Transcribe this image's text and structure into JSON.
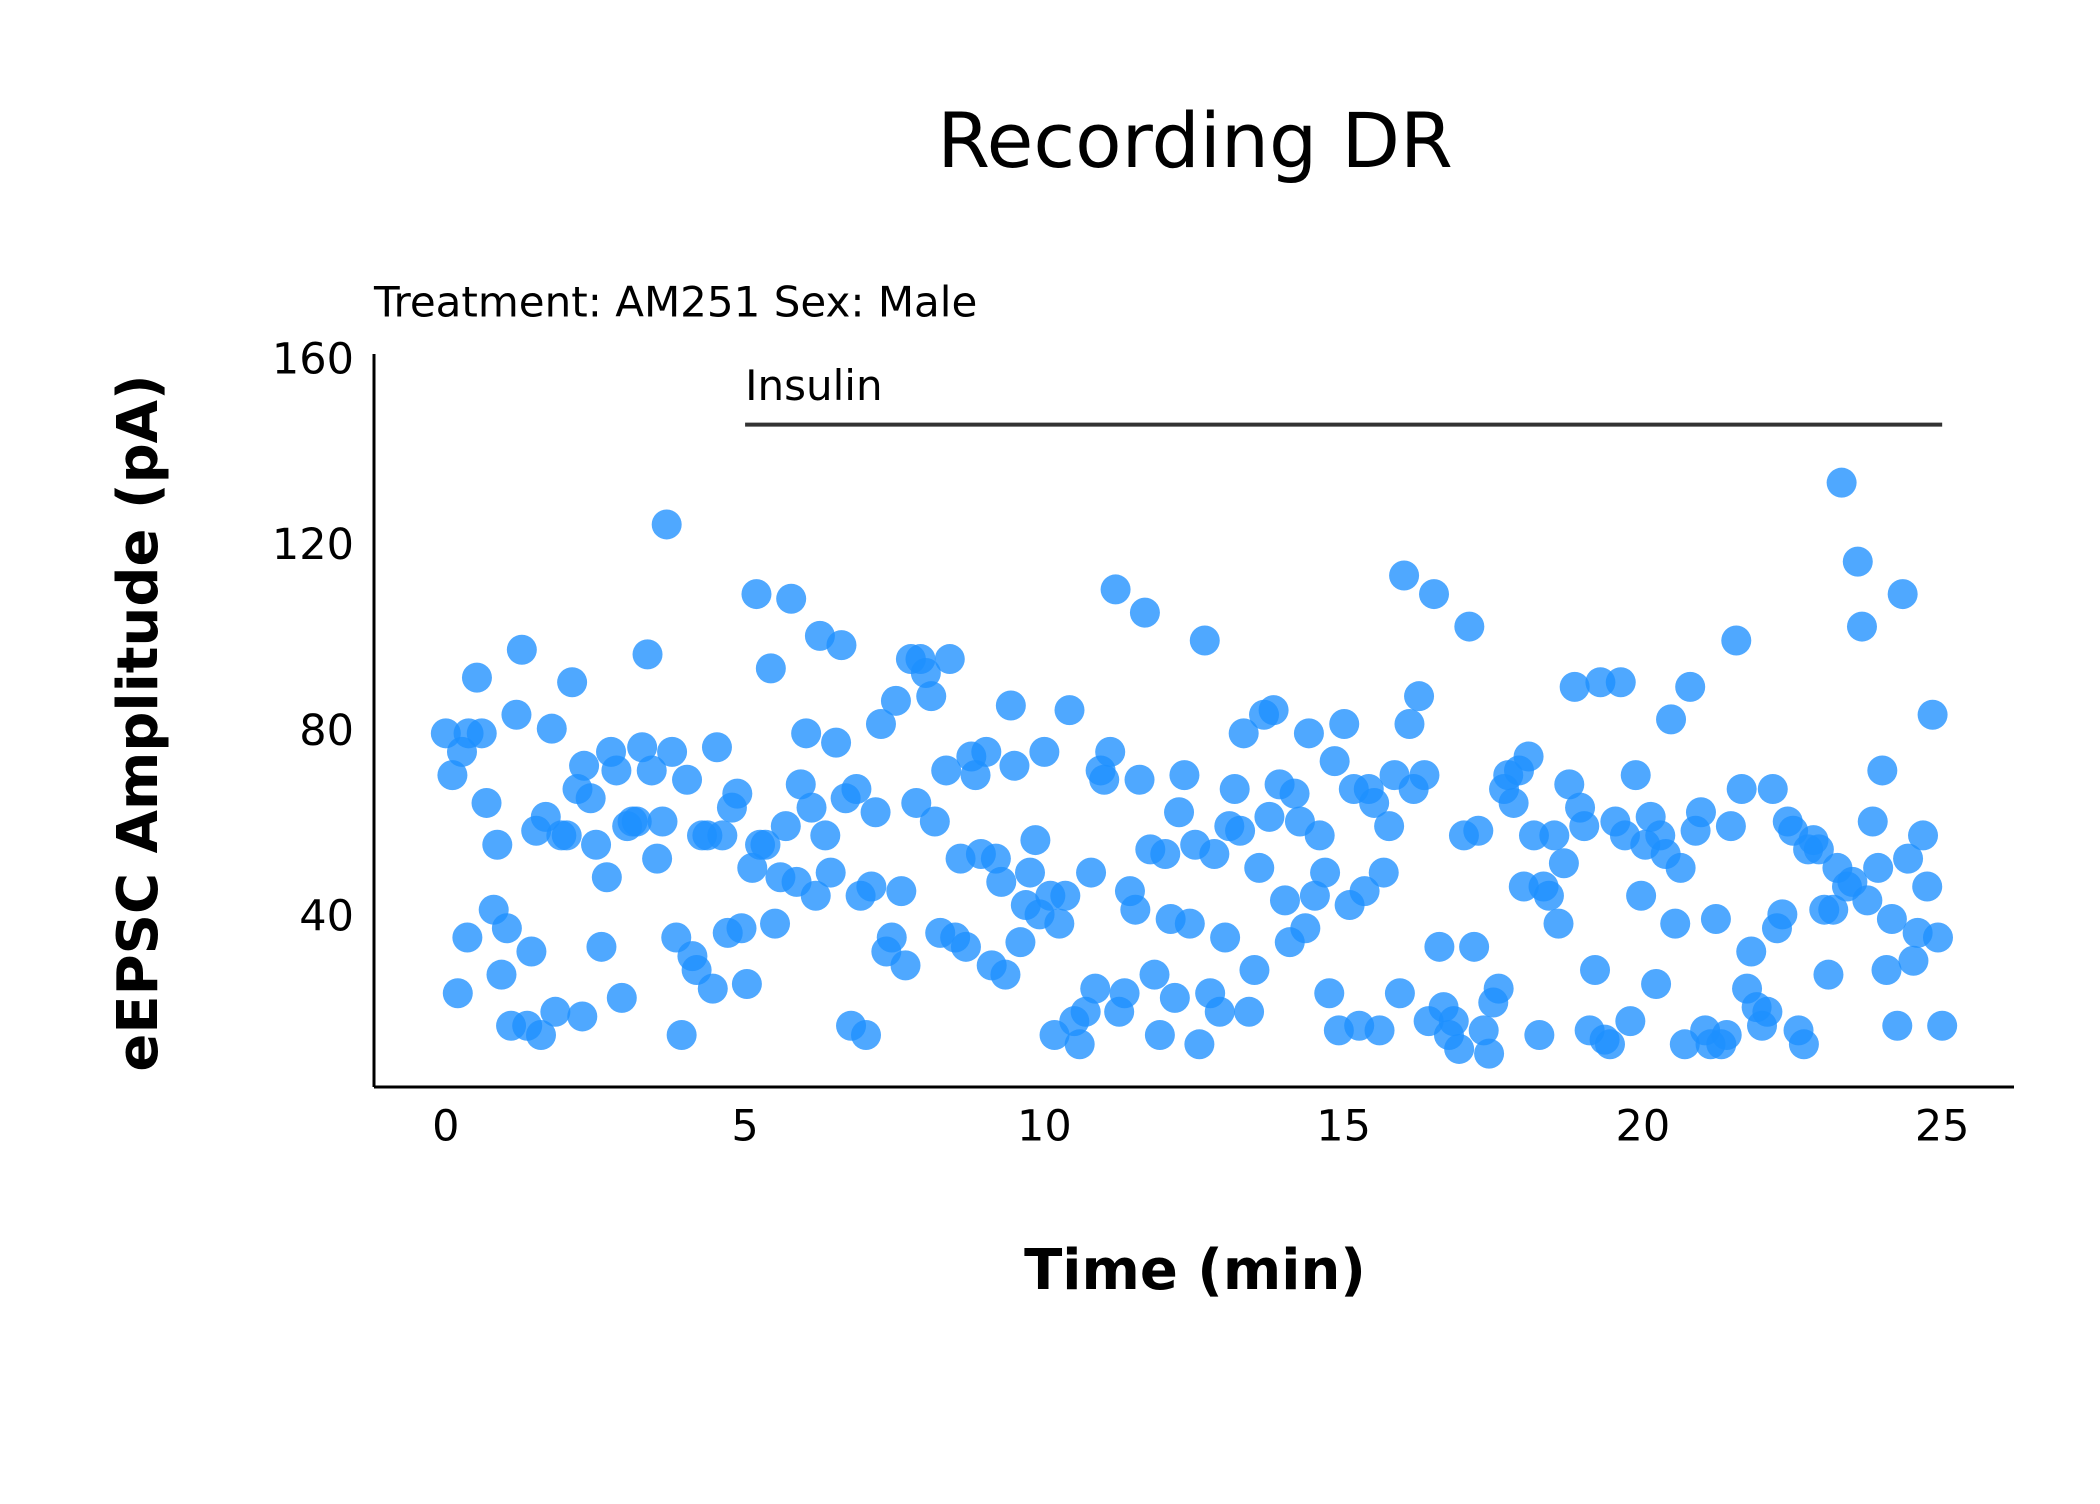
{
  "chart_data": {
    "type": "scatter",
    "title": "Recording DR",
    "subtitle": "Treatment: AM251  Sex: Male",
    "x_label": "Time (min)",
    "y_label": "eEPSC Amplitude (pA)",
    "color": "#1e90ff",
    "xlim": [
      -1.2,
      26.2
    ],
    "ylim": [
      3.8,
      160
    ],
    "xticks": [
      0,
      5,
      10,
      15,
      20,
      25
    ],
    "yticks": [
      40,
      80,
      120,
      160
    ],
    "annotations": [
      {
        "text": "Insulin",
        "x": [
          5,
          25
        ],
        "y": 146.5
      }
    ],
    "x": [
      0,
      0.11,
      0.27,
      0.2,
      0.36,
      0.38,
      0.52,
      0.6,
      0.68,
      0.8,
      0.86,
      0.93,
      1.02,
      1.09,
      1.18,
      1.27,
      1.36,
      1.43,
      1.51,
      1.59,
      1.67,
      1.77,
      1.83,
      1.93,
      2.02,
      2.11,
      2.2,
      2.28,
      2.31,
      2.42,
      2.51,
      2.6,
      2.69,
      2.76,
      2.85,
      2.94,
      3.03,
      3.12,
      3.19,
      3.28,
      3.37,
      3.44,
      3.53,
      3.62,
      3.69,
      3.78,
      3.85,
      3.94,
      4.03,
      4.12,
      4.19,
      4.28,
      4.37,
      4.46,
      4.53,
      4.62,
      4.71,
      4.78,
      4.87,
      4.94,
      5.03,
      5.12,
      5.19,
      5.25,
      5.34,
      5.43,
      5.5,
      5.59,
      5.68,
      5.77,
      5.86,
      5.93,
      6.02,
      6.11,
      6.18,
      6.25,
      6.34,
      6.43,
      6.52,
      6.61,
      6.68,
      6.77,
      6.86,
      6.93,
      7.02,
      7.11,
      7.18,
      7.27,
      7.36,
      7.45,
      7.52,
      7.61,
      7.68,
      7.77,
      7.86,
      7.93,
      8.02,
      8.11,
      8.17,
      8.26,
      8.36,
      8.42,
      8.51,
      8.6,
      8.69,
      8.78,
      8.85,
      8.94,
      9.03,
      9.12,
      9.19,
      9.28,
      9.35,
      9.44,
      9.5,
      9.6,
      9.69,
      9.76,
      9.85,
      9.92,
      10.0,
      10.1,
      10.17,
      10.25,
      10.35,
      10.42,
      10.5,
      10.59,
      10.69,
      10.78,
      10.85,
      10.94,
      11.0,
      11.1,
      11.19,
      11.25,
      11.34,
      11.43,
      11.52,
      11.59,
      11.68,
      11.77,
      11.84,
      11.93,
      12.02,
      12.11,
      12.18,
      12.25,
      12.34,
      12.43,
      12.52,
      12.59,
      12.68,
      12.77,
      12.84,
      12.93,
      13.02,
      13.09,
      13.18,
      13.27,
      13.33,
      13.42,
      13.51,
      13.59,
      13.67,
      13.76,
      13.83,
      13.93,
      14.02,
      14.1,
      14.18,
      14.27,
      14.36,
      14.42,
      14.52,
      14.6,
      14.69,
      14.76,
      14.85,
      14.92,
      15.01,
      15.1,
      15.17,
      15.26,
      15.35,
      15.42,
      15.51,
      15.6,
      15.67,
      15.76,
      15.85,
      15.94,
      16.01,
      16.1,
      16.17,
      16.26,
      16.35,
      16.42,
      16.51,
      16.6,
      16.67,
      16.76,
      16.84,
      16.93,
      17.01,
      17.1,
      17.18,
      17.25,
      17.34,
      17.43,
      17.5,
      17.59,
      17.68,
      17.75,
      17.84,
      17.93,
      18.01,
      18.09,
      18.18,
      18.27,
      18.34,
      18.43,
      18.52,
      18.59,
      18.68,
      18.77,
      18.86,
      18.95,
      19.02,
      19.11,
      19.2,
      19.29,
      19.36,
      19.45,
      19.54,
      19.63,
      19.7,
      19.79,
      19.88,
      19.97,
      20.04,
      20.13,
      20.22,
      20.29,
      20.38,
      20.47,
      20.54,
      20.63,
      20.7,
      20.79,
      20.88,
      20.97,
      21.04,
      21.13,
      21.22,
      21.31,
      21.4,
      21.47,
      21.56,
      21.65,
      21.74,
      21.81,
      21.9,
      21.99,
      22.08,
      22.17,
      22.24,
      22.33,
      22.42,
      22.51,
      22.6,
      22.69,
      22.76,
      22.85,
      22.94,
      23.03,
      23.1,
      23.18,
      23.25,
      23.32,
      23.41,
      23.5,
      23.59,
      23.66,
      23.75,
      23.84,
      23.93,
      24.0,
      24.07,
      24.16,
      24.25,
      24.34,
      24.43,
      24.52,
      24.59,
      24.68,
      24.75,
      24.84,
      24.93,
      25.0
    ],
    "values": [
      80,
      71,
      76,
      24,
      36,
      80,
      92,
      80,
      65,
      42,
      56,
      28,
      38,
      17,
      84,
      98,
      17,
      33,
      59,
      15,
      62,
      81,
      20,
      58,
      58,
      91,
      68,
      19,
      73,
      66,
      56,
      34,
      49,
      76,
      72,
      23,
      60,
      61,
      61,
      77,
      97,
      72,
      53,
      61,
      125,
      76,
      36,
      15,
      70,
      32,
      29,
      58,
      58,
      25,
      77,
      58,
      37,
      64,
      67,
      38,
      26,
      51,
      110,
      56,
      56,
      94,
      39,
      49,
      60,
      109,
      48,
      69,
      80,
      64,
      45,
      101,
      58,
      50,
      78,
      99,
      66,
      17,
      68,
      45,
      15,
      47,
      63,
      82,
      33,
      36,
      87,
      46,
      30,
      96,
      65,
      96,
      93,
      88,
      61,
      37,
      72,
      96,
      36,
      53,
      34,
      75,
      71,
      54,
      76,
      30,
      53,
      48,
      28,
      86,
      73,
      35,
      43,
      50,
      57,
      41,
      76,
      45,
      15,
      39,
      45,
      85,
      18,
      13,
      20,
      50,
      25,
      72,
      70,
      76,
      111,
      20,
      24,
      46,
      42,
      70,
      106,
      55,
      28,
      15,
      54,
      40,
      23,
      63,
      71,
      39,
      56,
      13,
      100,
      24,
      54,
      20,
      36,
      60,
      68,
      59,
      80,
      20,
      29,
      51,
      84,
      62,
      85,
      69,
      44,
      35,
      67,
      61,
      38,
      80,
      45,
      58,
      50,
      24,
      74,
      16,
      82,
      43,
      68,
      17,
      46,
      68,
      65,
      16,
      50,
      60,
      71,
      24,
      114,
      82,
      68,
      88,
      71,
      18,
      110,
      34,
      21,
      15,
      18,
      12,
      58,
      103,
      34,
      59,
      16,
      11,
      22,
      25,
      68,
      71,
      65,
      72,
      47,
      75,
      58,
      15,
      47,
      45,
      58,
      39,
      52,
      69,
      90,
      64,
      60,
      16,
      29,
      91,
      14,
      13,
      61,
      91,
      58,
      18,
      71,
      45,
      56,
      62,
      26,
      58,
      54,
      83,
      39,
      51,
      13,
      90,
      59,
      63,
      16,
      13,
      40,
      13,
      15,
      60,
      100,
      68,
      25,
      33,
      21,
      17,
      20,
      68,
      38,
      41,
      61,
      59,
      16,
      13,
      55,
      57,
      55,
      42,
      28,
      42,
      51,
      134,
      47,
      48,
      117,
      103,
      44,
      61,
      51,
      72,
      29,
      40,
      17,
      110,
      53,
      31,
      37,
      58,
      47,
      84,
      36,
      17
    ]
  }
}
